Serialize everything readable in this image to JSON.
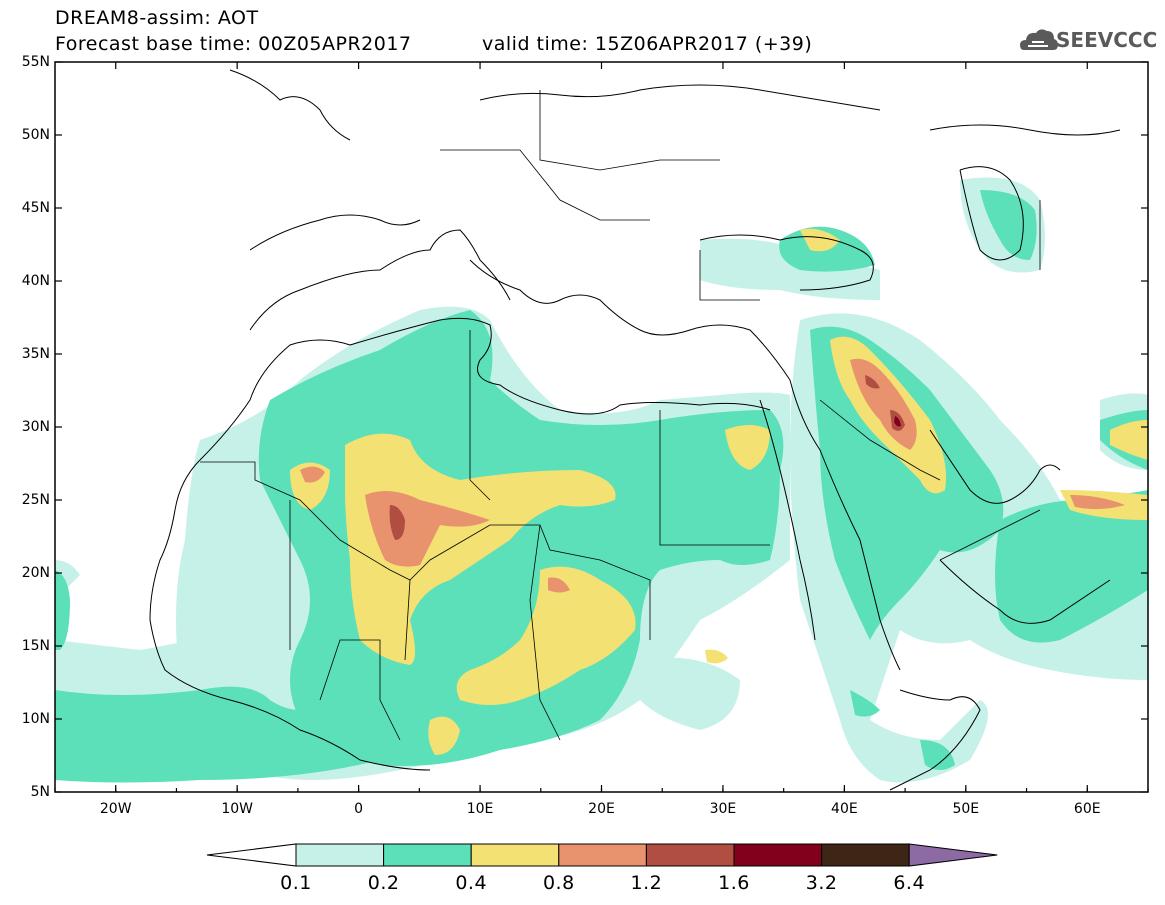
{
  "header": {
    "title_line1": "DREAM8-assim: AOT",
    "title_line2": "Forecast base time: 00Z05APR2017",
    "valid_time": "valid time: 15Z06APR2017 (+39)",
    "logo_text": "SEEVCCC"
  },
  "map": {
    "lat_ticks": [
      "55N",
      "50N",
      "45N",
      "40N",
      "35N",
      "30N",
      "25N",
      "20N",
      "15N",
      "10N",
      "5N"
    ],
    "lon_ticks": [
      "20W",
      "10W",
      "0",
      "10E",
      "20E",
      "30E",
      "40E",
      "50E",
      "60E"
    ],
    "lon_range": [
      -25,
      65
    ],
    "lat_range": [
      5,
      55
    ]
  },
  "colorbar": {
    "labels": [
      "0.1",
      "0.2",
      "0.4",
      "0.8",
      "1.2",
      "1.6",
      "3.2",
      "6.4"
    ],
    "colors": [
      "#ffffff",
      "#c6f1e9",
      "#5be0b9",
      "#f3e173",
      "#e8936e",
      "#b04f41",
      "#82001b",
      "#3e2515",
      "#8d6aa4"
    ]
  }
}
